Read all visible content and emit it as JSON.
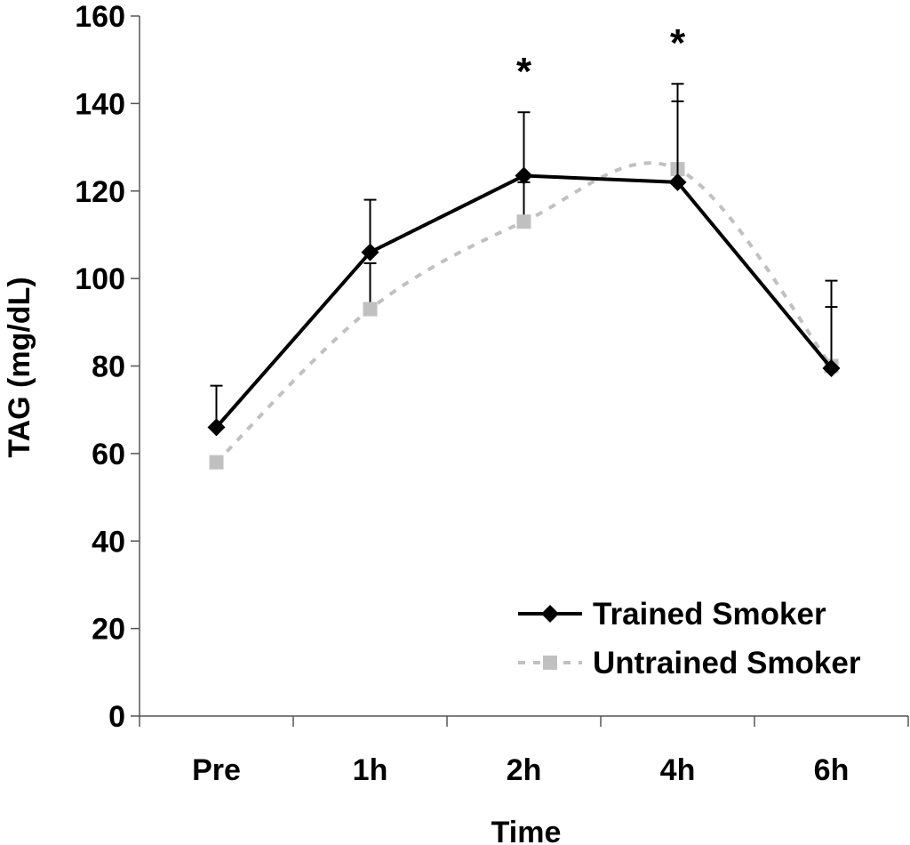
{
  "chart_data": {
    "type": "line",
    "categories": [
      "Pre",
      "1h",
      "2h",
      "4h",
      "6h"
    ],
    "xlabel": "Time",
    "ylabel": "TAG (mg/dL)",
    "ylim": [
      0,
      160
    ],
    "yticks": [
      0,
      20,
      40,
      60,
      80,
      100,
      120,
      140,
      160
    ],
    "grid": false,
    "legend_position": "bottom-right",
    "series": [
      {
        "name": "Trained Smoker",
        "values": [
          66,
          106,
          123.5,
          122,
          79.5
        ],
        "error": [
          9.5,
          12,
          14.5,
          18.5,
          20
        ],
        "color": "#000000",
        "marker": "diamond",
        "line": "solid"
      },
      {
        "name": "Untrained Smoker",
        "values": [
          58,
          93,
          113,
          125,
          80
        ],
        "error": [
          0,
          10.5,
          9,
          19.5,
          13.5
        ],
        "color": "#c0c0c0",
        "marker": "square",
        "line": "dashed"
      }
    ],
    "annotations": [
      {
        "category": "2h",
        "text": "*"
      },
      {
        "category": "4h",
        "text": "*"
      }
    ]
  }
}
